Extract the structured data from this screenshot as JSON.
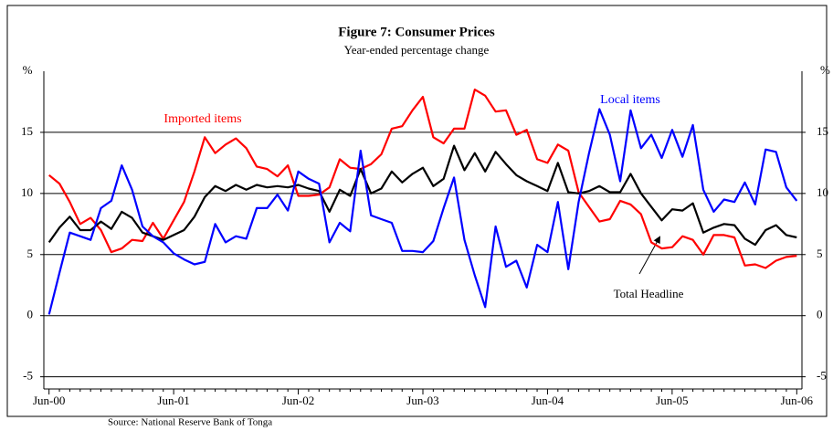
{
  "chart_data": {
    "type": "line",
    "title": "Figure 7: Consumer Prices",
    "subtitle": "Year-ended percentage change",
    "y_label": "%",
    "y2_label": "%",
    "source": "Source: National Reserve Bank of Tonga",
    "annotations": [
      "Imported items",
      "Local items",
      "Total Headline"
    ],
    "categories": [
      "Jun-00",
      null,
      null,
      null,
      null,
      null,
      null,
      null,
      null,
      null,
      null,
      null,
      "Jun-01",
      null,
      null,
      null,
      null,
      null,
      null,
      null,
      null,
      null,
      null,
      null,
      "Jun-02",
      null,
      null,
      null,
      null,
      null,
      null,
      null,
      null,
      null,
      null,
      null,
      "Jun-03",
      null,
      null,
      null,
      null,
      null,
      null,
      null,
      null,
      null,
      null,
      null,
      "Jun-04",
      null,
      null,
      null,
      null,
      null,
      null,
      null,
      null,
      null,
      null,
      null,
      "Jun-05",
      null,
      null,
      null,
      null,
      null,
      null,
      null,
      null,
      null,
      null,
      null,
      "Jun-06"
    ],
    "series": [
      {
        "name": "Imported items",
        "color": "#ff0000",
        "values": [
          11.5,
          10.8,
          9.3,
          7.5,
          8.0,
          7.0,
          5.2,
          5.5,
          6.2,
          6.1,
          7.6,
          6.3,
          7.8,
          9.3,
          11.8,
          14.6,
          13.3,
          14.0,
          14.5,
          13.7,
          12.2,
          12.0,
          11.4,
          12.3,
          9.8,
          9.8,
          9.9,
          10.5,
          12.8,
          12.1,
          12.0,
          12.4,
          13.2,
          15.3,
          15.5,
          16.8,
          17.9,
          14.6,
          14.1,
          15.3,
          15.3,
          18.5,
          18.0,
          16.7,
          16.8,
          14.8,
          15.2,
          12.8,
          12.5,
          14.0,
          13.5,
          10.1,
          8.9,
          7.7,
          7.9,
          9.4,
          9.1,
          8.3,
          6.0,
          5.5,
          5.6,
          6.5,
          6.2,
          5.0,
          6.6,
          6.6,
          6.4,
          4.1,
          4.2,
          3.9,
          4.5,
          4.8,
          4.9
        ]
      },
      {
        "name": "Total Headline",
        "color": "#000000",
        "values": [
          6.0,
          7.2,
          8.1,
          7.0,
          7.0,
          7.7,
          7.1,
          8.5,
          8.0,
          6.8,
          6.5,
          6.2,
          6.6,
          7.0,
          8.1,
          9.7,
          10.6,
          10.2,
          10.7,
          10.3,
          10.7,
          10.5,
          10.6,
          10.5,
          10.7,
          10.4,
          10.2,
          8.5,
          10.3,
          9.8,
          12.0,
          10.0,
          10.4,
          11.8,
          10.9,
          11.6,
          12.1,
          10.6,
          11.2,
          13.9,
          11.9,
          13.3,
          11.8,
          13.4,
          12.4,
          11.5,
          11.0,
          10.6,
          10.2,
          12.5,
          10.1,
          10.0,
          10.2,
          10.6,
          10.1,
          10.1,
          11.6,
          10.0,
          8.9,
          7.8,
          8.7,
          8.6,
          9.2,
          6.8,
          7.2,
          7.5,
          7.4,
          6.3,
          5.8,
          7.0,
          7.4,
          6.6,
          6.4
        ]
      },
      {
        "name": "Local items",
        "color": "#0000ff",
        "values": [
          0.1,
          3.5,
          6.8,
          6.5,
          6.2,
          8.8,
          9.4,
          12.3,
          10.3,
          7.3,
          6.5,
          6.0,
          5.1,
          4.6,
          4.2,
          4.4,
          7.5,
          6.0,
          6.5,
          6.3,
          8.8,
          8.8,
          9.9,
          8.6,
          11.8,
          11.2,
          10.8,
          6.0,
          7.6,
          6.9,
          13.5,
          8.2,
          7.9,
          7.6,
          5.3,
          5.3,
          5.2,
          6.1,
          8.8,
          11.3,
          6.2,
          3.3,
          0.7,
          7.3,
          4.0,
          4.5,
          2.3,
          5.8,
          5.2,
          9.3,
          3.8,
          9.3,
          13.3,
          16.9,
          14.8,
          11.0,
          16.8,
          13.7,
          14.8,
          12.9,
          15.2,
          13.0,
          15.6,
          10.3,
          8.5,
          9.5,
          9.3,
          10.9,
          9.1,
          13.6,
          13.4,
          10.5,
          9.4
        ]
      }
    ],
    "ylim": [
      -6,
      20
    ],
    "yticks": [
      -5,
      0,
      5,
      10,
      15
    ],
    "grid": true
  }
}
